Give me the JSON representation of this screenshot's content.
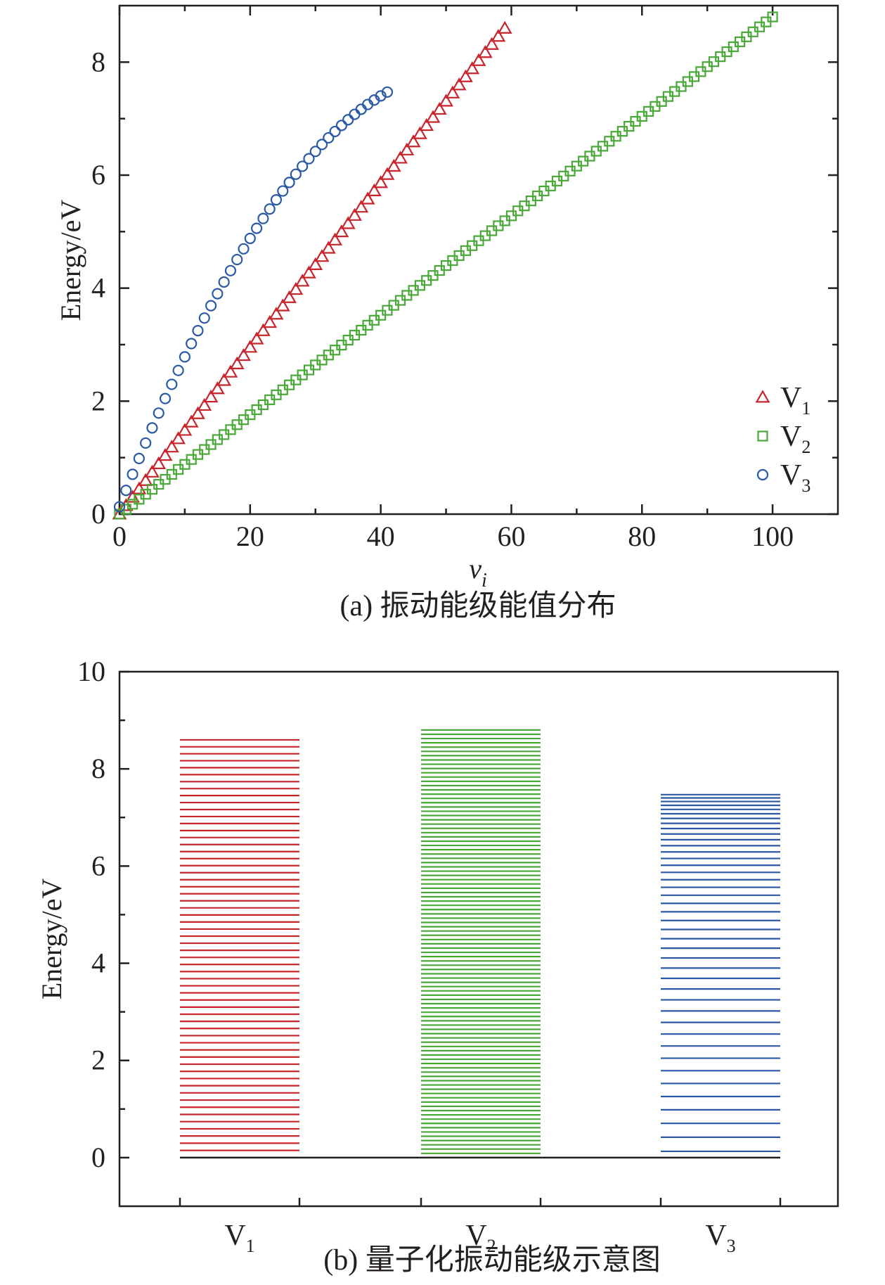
{
  "chart_data": [
    {
      "type": "scatter",
      "caption": "(a) 振动能级能值分布",
      "xlabel": "v",
      "xlabel_sub": "i",
      "ylabel": "Energy/eV",
      "xlim": [
        0,
        110
      ],
      "ylim": [
        0,
        9
      ],
      "xticks": [
        0,
        20,
        40,
        60,
        80,
        100
      ],
      "yticks": [
        0,
        2,
        4,
        6,
        8
      ],
      "legend_position": "bottom-right",
      "series": [
        {
          "name": "V",
          "sub": "1",
          "marker": "triangle",
          "color": "#c8242c",
          "n_max": 59,
          "model": "poly",
          "coef": [
            0.0,
            0.1485,
            -4.72e-05
          ]
        },
        {
          "name": "V",
          "sub": "2",
          "marker": "square",
          "color": "#49a838",
          "n_max": 100,
          "model": "linear",
          "step": 0.088
        },
        {
          "name": "V",
          "sub": "3",
          "marker": "circle",
          "color": "#2a5aa5",
          "n_max": 41,
          "model": "poly",
          "coef": [
            0.13,
            0.2932,
            -0.002785
          ]
        }
      ]
    },
    {
      "type": "energy-levels",
      "caption": "(b) 量子化振动能级示意图",
      "ylabel": "Energy/eV",
      "ylim": [
        -1,
        10
      ],
      "yticks": [
        0,
        2,
        4,
        6,
        8,
        10
      ],
      "categories": [
        {
          "name": "V",
          "sub": "1",
          "color": "#c8242c",
          "levels_from": 0,
          "top": 8.62
        },
        {
          "name": "V",
          "sub": "2",
          "color": "#49a838",
          "levels_from": 1,
          "top": 8.8
        },
        {
          "name": "V",
          "sub": "3",
          "color": "#2a5aa5",
          "levels_from": 0,
          "top": 7.42
        }
      ],
      "baseline": 0
    }
  ]
}
